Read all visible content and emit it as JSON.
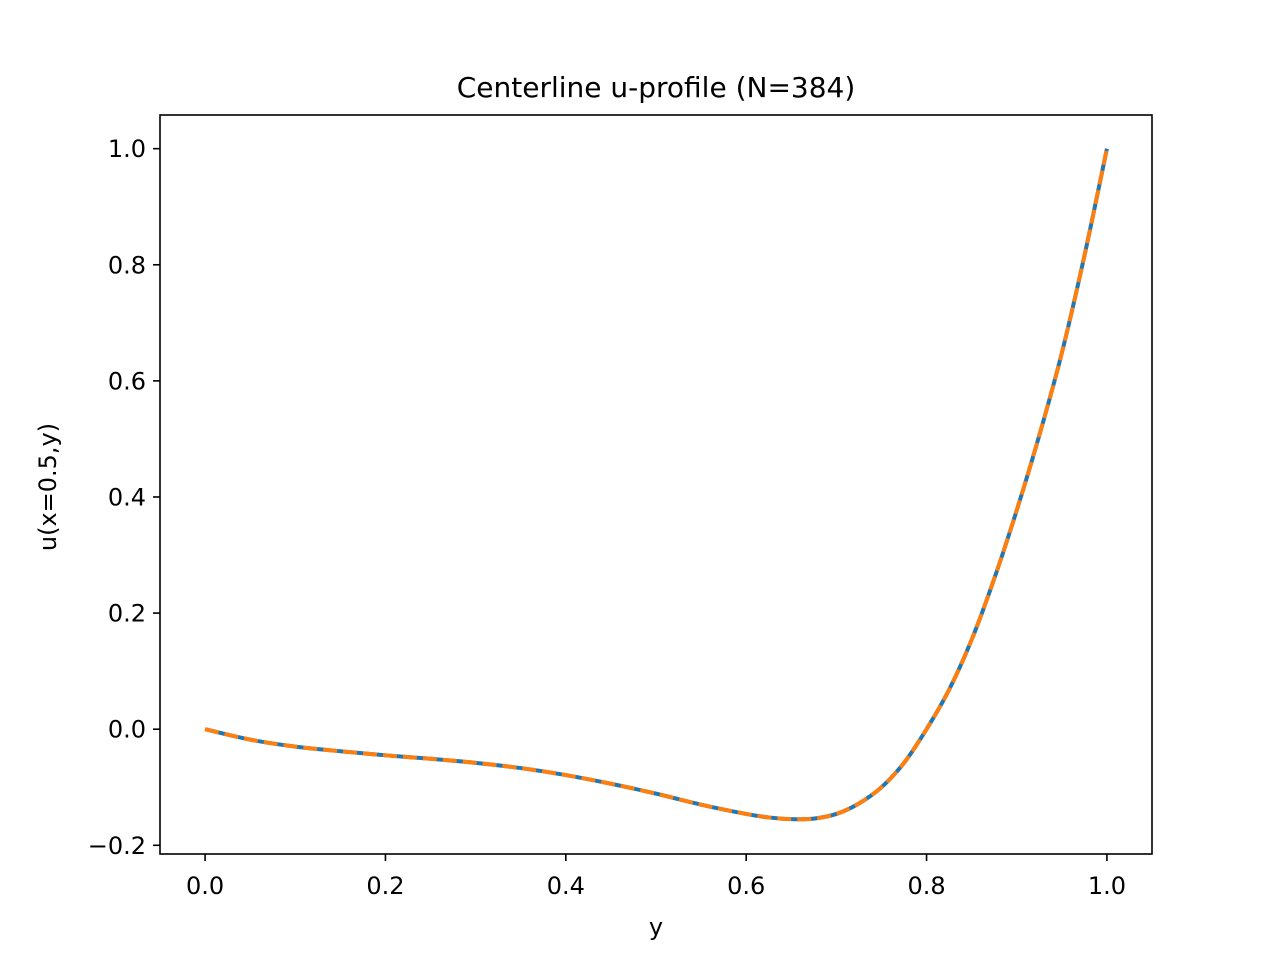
{
  "chart_data": {
    "type": "line",
    "title": "Centerline u-profile (N=384)",
    "xlabel": "y",
    "ylabel": "u(x=0.5,y)",
    "xlim": [
      -0.05,
      1.05
    ],
    "ylim": [
      -0.215,
      1.058
    ],
    "grid": false,
    "legend": "none",
    "xticks": [
      {
        "value": 0.0,
        "label": "0.0"
      },
      {
        "value": 0.2,
        "label": "0.2"
      },
      {
        "value": 0.4,
        "label": "0.4"
      },
      {
        "value": 0.6,
        "label": "0.6"
      },
      {
        "value": 0.8,
        "label": "0.8"
      },
      {
        "value": 1.0,
        "label": "1.0"
      }
    ],
    "yticks": [
      {
        "value": -0.2,
        "label": "−0.2"
      },
      {
        "value": 0.0,
        "label": "0.0"
      },
      {
        "value": 0.2,
        "label": "0.2"
      },
      {
        "value": 0.4,
        "label": "0.4"
      },
      {
        "value": 0.6,
        "label": "0.6"
      },
      {
        "value": 0.8,
        "label": "0.8"
      },
      {
        "value": 1.0,
        "label": "1.0"
      }
    ],
    "x": [
      0.0,
      0.05,
      0.1,
      0.15,
      0.2,
      0.25,
      0.3,
      0.35,
      0.4,
      0.45,
      0.5,
      0.55,
      0.6,
      0.625,
      0.65,
      0.675,
      0.7,
      0.725,
      0.75,
      0.775,
      0.8,
      0.825,
      0.85,
      0.875,
      0.9,
      0.925,
      0.95,
      0.975,
      1.0
    ],
    "series": [
      {
        "color": "#1f77b4",
        "style": "solid",
        "values": [
          0.0,
          -0.018,
          -0.03,
          -0.038,
          -0.045,
          -0.051,
          -0.058,
          -0.067,
          -0.079,
          -0.094,
          -0.111,
          -0.13,
          -0.146,
          -0.152,
          -0.155,
          -0.154,
          -0.146,
          -0.128,
          -0.1,
          -0.058,
          0.0,
          0.068,
          0.154,
          0.259,
          0.377,
          0.506,
          0.648,
          0.815,
          1.0
        ]
      },
      {
        "color": "#ff7f0e",
        "style": "dashed",
        "values": [
          0.0,
          -0.018,
          -0.03,
          -0.038,
          -0.045,
          -0.051,
          -0.058,
          -0.067,
          -0.079,
          -0.094,
          -0.111,
          -0.13,
          -0.146,
          -0.152,
          -0.155,
          -0.154,
          -0.146,
          -0.128,
          -0.1,
          -0.058,
          0.0,
          0.068,
          0.154,
          0.259,
          0.377,
          0.506,
          0.648,
          0.815,
          1.0
        ]
      }
    ]
  }
}
